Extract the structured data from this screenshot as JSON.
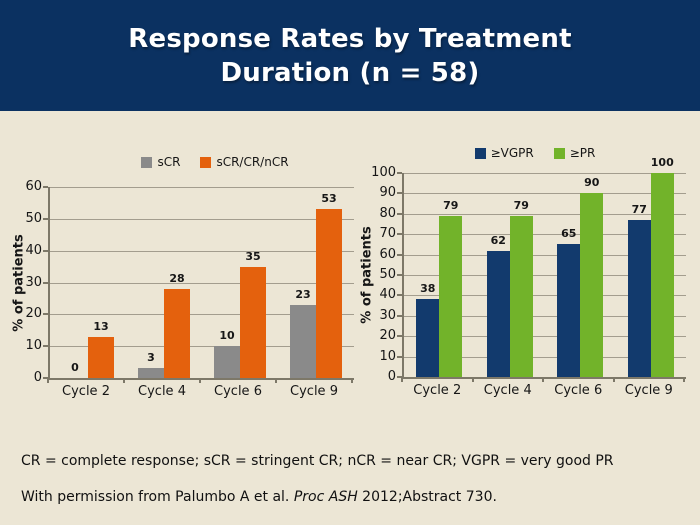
{
  "header": {
    "title_line1": "Response Rates by Treatment",
    "title_line2": "Duration (n = 58)"
  },
  "colors": {
    "header_background": "#0b3161",
    "slide_background": "#ece6d5",
    "title_text": "#ffffff",
    "bar_gray": "#8a8a8a",
    "bar_orange": "#e4610d",
    "bar_navy": "#123a6d",
    "bar_green": "#72b32a",
    "gridline": "#a39d8e",
    "axis": "#7d7868",
    "label_text": "#161616"
  },
  "chart_data": [
    {
      "type": "bar",
      "title": "",
      "xlabel": "",
      "ylabel": "% of patients",
      "ylim": [
        0,
        60
      ],
      "ytick_step": 10,
      "grid": true,
      "legend_position": "top",
      "value_labels": true,
      "categories": [
        "Cycle 2",
        "Cycle 4",
        "Cycle 6",
        "Cycle 9"
      ],
      "series": [
        {
          "name": "sCR",
          "color": "#8a8a8a",
          "values": [
            0,
            3,
            10,
            23
          ]
        },
        {
          "name": "sCR/CR/nCR",
          "color": "#e4610d",
          "values": [
            13,
            28,
            35,
            53
          ]
        }
      ]
    },
    {
      "type": "bar",
      "title": "",
      "xlabel": "",
      "ylabel": "% of patients",
      "ylim": [
        0,
        100
      ],
      "ytick_step": 10,
      "grid": true,
      "legend_position": "top",
      "value_labels": true,
      "categories": [
        "Cycle 2",
        "Cycle 4",
        "Cycle 6",
        "Cycle 9"
      ],
      "series": [
        {
          "name": "≥VGPR",
          "color": "#123a6d",
          "values": [
            38,
            62,
            65,
            77
          ]
        },
        {
          "name": "≥PR",
          "color": "#72b32a",
          "values": [
            79,
            79,
            90,
            100
          ]
        }
      ]
    }
  ],
  "footer": {
    "abbreviations": "CR = complete response; sCR = stringent CR; nCR = near CR; VGPR = very good PR",
    "permission_prefix": "With permission from Palumbo A et al. ",
    "permission_italic": "Proc ASH",
    "permission_suffix": " 2012;Abstract 730."
  }
}
